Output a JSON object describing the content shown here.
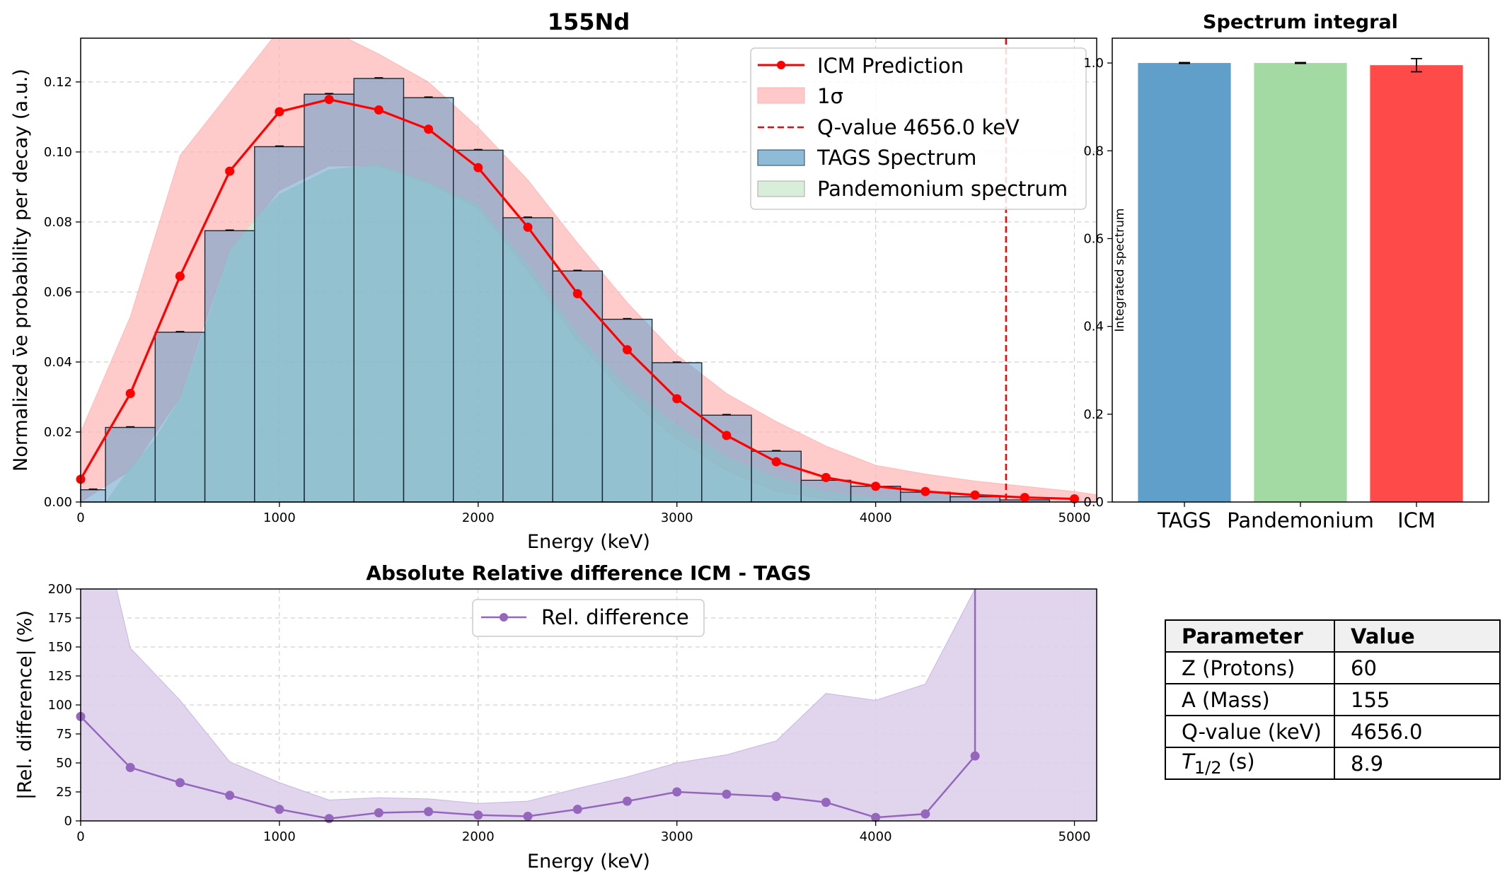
{
  "chart_data": [
    {
      "type": "bar+line",
      "title": "155Nd",
      "xlabel": "Energy (keV)",
      "ylabel": "Normalized ν̄e probability per decay (a.u.)",
      "xlim": [
        0,
        5112
      ],
      "ylim": [
        0,
        0.1325
      ],
      "xticks": [
        0,
        1000,
        2000,
        3000,
        4000,
        5000
      ],
      "yticks": [
        0.0,
        0.02,
        0.04,
        0.06,
        0.08,
        0.1,
        0.12
      ],
      "ytick_labels": [
        "0.00",
        "0.02",
        "0.04",
        "0.06",
        "0.08",
        "0.10",
        "0.12"
      ],
      "grid": true,
      "legend_position": "top-right",
      "legend": [
        "ICM Prediction",
        "1σ",
        "Q-value 4656.0 keV",
        "TAGS Spectrum",
        "Pandemonium spectrum"
      ],
      "q_value": 4656.0,
      "bin_edges": [
        0,
        125,
        375,
        625,
        875,
        1125,
        1375,
        1625,
        1875,
        2125,
        2375,
        2625,
        2875,
        3125,
        3375,
        3625,
        3875,
        4125,
        4375,
        4625,
        4875
      ],
      "tags_values": [
        0.0035,
        0.0213,
        0.0485,
        0.0775,
        0.1015,
        0.1165,
        0.121,
        0.1155,
        0.1005,
        0.0812,
        0.066,
        0.0522,
        0.0398,
        0.0248,
        0.0145,
        0.0062,
        0.0045,
        0.0028,
        0.0015,
        0.0006
      ],
      "pandemonium_x": [
        0,
        125,
        250,
        375,
        500,
        625,
        750,
        875,
        1000,
        1250,
        1500,
        1750,
        2000,
        2250,
        2500,
        2750,
        3000,
        3250,
        3500,
        3750,
        4000,
        4250,
        4500
      ],
      "pandemonium_values": [
        0.0,
        0.0,
        0.01,
        0.018,
        0.03,
        0.05,
        0.072,
        0.081,
        0.088,
        0.095,
        0.0965,
        0.0915,
        0.085,
        0.068,
        0.048,
        0.033,
        0.022,
        0.013,
        0.007,
        0.003,
        0.0012,
        0.0004,
        0.0
      ],
      "icm_x": [
        0,
        250,
        500,
        750,
        1000,
        1250,
        1500,
        1750,
        2000,
        2250,
        2500,
        2750,
        3000,
        3250,
        3500,
        3750,
        4000,
        4250,
        4500,
        4750,
        5000
      ],
      "icm_values": [
        0.0065,
        0.031,
        0.0645,
        0.0945,
        0.1115,
        0.115,
        0.112,
        0.1065,
        0.0955,
        0.0785,
        0.0595,
        0.0435,
        0.0295,
        0.019,
        0.0115,
        0.007,
        0.0045,
        0.003,
        0.002,
        0.0013,
        0.0009
      ],
      "sigma_upper": [
        0.02,
        0.053,
        0.099,
        0.117,
        0.135,
        0.135,
        0.128,
        0.12,
        0.107,
        0.092,
        0.074,
        0.057,
        0.042,
        0.031,
        0.023,
        0.016,
        0.0105,
        0.008,
        0.006,
        0.0045,
        0.003
      ],
      "sigma_lower": [
        0.0,
        0.009,
        0.03,
        0.072,
        0.089,
        0.096,
        0.096,
        0.091,
        0.084,
        0.066,
        0.046,
        0.03,
        0.018,
        0.009,
        0.003,
        0.0008,
        0.0,
        0.0,
        0.0,
        0.0,
        0.0
      ]
    },
    {
      "type": "bar",
      "title": "Spectrum integral",
      "ylabel": "Integrated spectrum",
      "categories": [
        "TAGS",
        "Pandemonium",
        "ICM"
      ],
      "values": [
        1.0,
        1.0,
        0.995
      ],
      "errors": [
        0.001,
        0.001,
        0.015
      ],
      "colors": [
        "#5f9fca",
        "#a3d9a3",
        "#ff4a4a"
      ],
      "ylim": [
        0,
        1.0565
      ],
      "yticks": [
        0.0,
        0.2,
        0.4,
        0.6,
        0.8,
        1.0
      ],
      "ytick_labels": [
        "0.0",
        "0.2",
        "0.4",
        "0.6",
        "0.8",
        "1.0"
      ]
    },
    {
      "type": "line",
      "title": "Absolute Relative difference ICM - TAGS",
      "xlabel": "Energy (keV)",
      "ylabel": "|Rel. difference| (%)",
      "xlim": [
        0,
        5112
      ],
      "ylim": [
        0,
        200
      ],
      "xticks": [
        0,
        1000,
        2000,
        3000,
        4000,
        5000
      ],
      "yticks": [
        0,
        25,
        50,
        75,
        100,
        125,
        150,
        175,
        200
      ],
      "grid": true,
      "legend_position": "top-center",
      "legend": [
        "Rel. difference"
      ],
      "series": [
        {
          "name": "Rel. difference",
          "x": [
            0,
            250,
            500,
            750,
            1000,
            1250,
            1500,
            1750,
            2000,
            2250,
            2500,
            2750,
            3000,
            3250,
            3500,
            3750,
            4000,
            4250,
            4500
          ],
          "values": [
            90,
            46,
            33,
            22,
            10,
            2,
            7,
            8,
            5,
            4,
            10,
            17,
            25,
            23,
            21,
            16,
            3,
            6,
            56
          ]
        }
      ],
      "band_x": [
        0,
        180,
        250,
        500,
        750,
        1000,
        1250,
        1500,
        1750,
        2000,
        2250,
        2500,
        2750,
        3000,
        3250,
        3500,
        3750,
        4000,
        4250,
        4500,
        4590,
        5112
      ],
      "band_upper": [
        200,
        200,
        149,
        104,
        51,
        33,
        18,
        20,
        19,
        15,
        17,
        28,
        38,
        50,
        57,
        69,
        110,
        104,
        118,
        200,
        200,
        200
      ],
      "spike_x": 4500
    }
  ],
  "table": {
    "header": [
      "Parameter",
      "Value"
    ],
    "rows": [
      {
        "param": "Z (Protons)",
        "value": "60"
      },
      {
        "param": "A (Mass)",
        "value": "155"
      },
      {
        "param": "Q-value (keV)",
        "value": "4656.0"
      },
      {
        "param": "T1/2 (s)",
        "value": "8.9"
      }
    ]
  },
  "t_half": {
    "symbol": "T",
    "subscript": "1/2",
    "unit": "(s)"
  },
  "colors": {
    "icm": "#ff0000",
    "sigma_band": "#ffb3b3",
    "tags": "#5f9fca",
    "pandemonium": "#c8e6c9",
    "reldiff": "#9467bd",
    "reldiff_band": "#ddd0eb"
  }
}
